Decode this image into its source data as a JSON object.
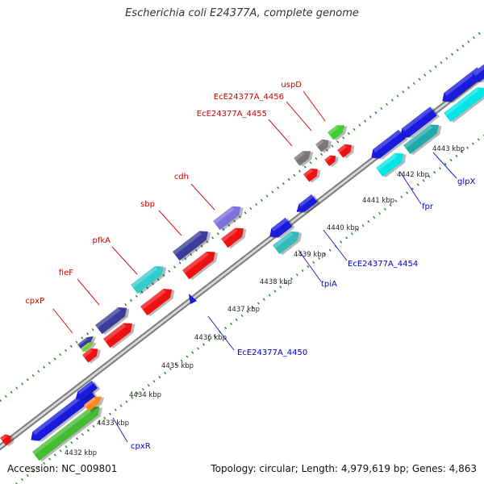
{
  "title": "Escherichia coli E24377A, complete genome",
  "footer": {
    "accession": "Accession: NC_009801",
    "topology": "Topology: circular; Length: 4,979,619 bp; Genes: 4,863"
  },
  "colors": {
    "backbone": "#9a9a9a",
    "tick_dots": "#2a8a2a",
    "label_upper": "#cc0000",
    "label_lower": "#0000cc",
    "scale_text": "#222222"
  },
  "scale_labels": [
    "4432 kbp",
    "4433 kbp",
    "4434 kbp",
    "4435 kbp",
    "4436 kbp",
    "4437 kbp",
    "4438 kbp",
    "4439 kbp",
    "4440 kbp",
    "4441 kbp",
    "4442 kbp",
    "4443 kbp"
  ],
  "upper_labels": [
    "cpxP",
    "fieF",
    "pfkA",
    "sbp",
    "cdh",
    "EcE24377A_4455",
    "EcE24377A_4456",
    "uspD"
  ],
  "lower_labels": [
    "cpxR",
    "EcE24377A_4450",
    "tpiA",
    "EcE24377A_4454",
    "fpr",
    "glpX"
  ]
}
